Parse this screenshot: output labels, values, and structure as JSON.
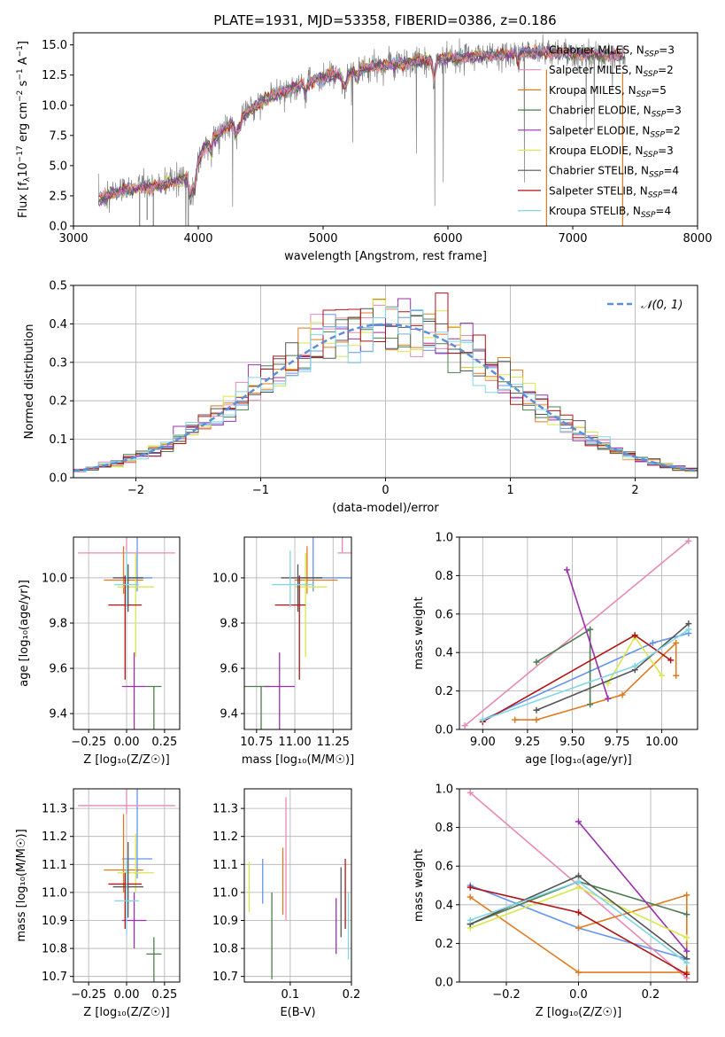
{
  "figure": {
    "title": "PLATE=1931, MJD=53358, FIBERID=0386, z=0.186"
  },
  "colors": {
    "Chabrier MILES": "#6495ed",
    "Salpeter MILES": "#e88ab5",
    "Kroupa MILES": "#e07b20",
    "Chabrier ELODIE": "#4d7d4d",
    "Salpeter ELODIE": "#9b2fae",
    "Kroupa ELODIE": "#d8e84a",
    "Chabrier STELIB": "#555555",
    "Salpeter STELIB": "#b01515",
    "Kroupa STELIB": "#7fd6e8",
    "data": "#808080",
    "gauss": "#5b8fd8"
  },
  "chart_data": [
    {
      "id": "spectrum",
      "type": "line",
      "xlabel": "wavelength [Angstrom, rest frame]",
      "ylabel": "Flux [f_λ10^{-17} erg cm^{-2} s^{-1} A^{-1}]",
      "xlim": [
        3000,
        8000
      ],
      "ylim": [
        0,
        16
      ],
      "xticks": [
        "3000",
        "4000",
        "5000",
        "6000",
        "7000",
        "8000"
      ],
      "yticks": [
        "0.0",
        "2.5",
        "5.0",
        "7.5",
        "10.0",
        "12.5",
        "15.0"
      ],
      "legend": [
        "Chabrier MILES, N_{SSP}=3",
        "Salpeter MILES, N_{SSP}=2",
        "Kroupa MILES, N_{SSP}=5",
        "Chabrier ELODIE, N_{SSP}=3",
        "Salpeter ELODIE, N_{SSP}=2",
        "Kroupa ELODIE, N_{SSP}=3",
        "Chabrier STELIB, N_{SSP}=4",
        "Salpeter STELIB, N_{SSP}=4",
        "Kroupa STELIB, N_{SSP}=4"
      ],
      "legend_position": "top-right",
      "continuum_x": [
        3200,
        3400,
        3600,
        3800,
        3950,
        4050,
        4200,
        4400,
        4600,
        4800,
        5000,
        5200,
        5400,
        5600,
        5800,
        6000,
        6200,
        6400,
        6600,
        6800,
        7000,
        7200,
        7400
      ],
      "continuum_y": [
        2.2,
        3.0,
        3.2,
        3.6,
        4.3,
        6.5,
        8.0,
        9.5,
        10.8,
        11.6,
        12.3,
        12.8,
        13.2,
        13.4,
        13.7,
        13.9,
        14.0,
        14.2,
        14.3,
        14.4,
        14.3,
        14.2,
        14.1
      ]
    },
    {
      "id": "residuals",
      "type": "bar",
      "xlabel": "(data-model)/error",
      "ylabel": "Normed distribution",
      "xlim": [
        -2.5,
        2.5
      ],
      "ylim": [
        0,
        0.5
      ],
      "xticks": [
        "−2",
        "−1",
        "0",
        "1",
        "2"
      ],
      "yticks": [
        "0.0",
        "0.1",
        "0.2",
        "0.3",
        "0.4",
        "0.5"
      ],
      "legend": [
        "𝒩(0, 1)"
      ],
      "legend_position": "top-right",
      "bin_width": 0.1,
      "grid": true
    },
    {
      "id": "age_vs_Z",
      "type": "scatter",
      "xlabel": "Z [log₁₀(Z/Z☉)]",
      "ylabel": "age  [log₁₀(age/yr)]",
      "xlim": [
        -0.35,
        0.35
      ],
      "ylim": [
        9.33,
        10.18
      ],
      "xticks": [
        "−0.25",
        "0.00",
        "0.25"
      ],
      "yticks": [
        "9.4",
        "9.6",
        "9.8",
        "10.0"
      ],
      "grid": true
    },
    {
      "id": "age_vs_mass",
      "type": "scatter",
      "xlabel": "mass [log₁₀(M/M☉)]",
      "xlim": [
        10.67,
        11.37
      ],
      "ylim": [
        9.33,
        10.18
      ],
      "xticks": [
        "10.75",
        "11.00",
        "11.25"
      ],
      "yticks": [
        "9.4",
        "9.6",
        "9.8",
        "10.0"
      ],
      "grid": true
    },
    {
      "id": "weight_vs_age",
      "type": "line",
      "xlabel": "age  [log₁₀(age/yr)]",
      "ylabel": "mass weight",
      "xlim": [
        8.87,
        10.2
      ],
      "ylim": [
        0,
        1
      ],
      "xticks": [
        "9.00",
        "9.25",
        "9.50",
        "9.75",
        "10.00"
      ],
      "yticks": [
        "0.0",
        "0.2",
        "0.4",
        "0.6",
        "0.8",
        "1.0"
      ],
      "grid": true
    },
    {
      "id": "mass_vs_Z",
      "type": "scatter",
      "xlabel": "Z [log₁₀(Z/Z☉)]",
      "ylabel": "mass [log₁₀(M/M☉)]",
      "xlim": [
        -0.35,
        0.35
      ],
      "ylim": [
        10.68,
        11.37
      ],
      "xticks": [
        "−0.25",
        "0.00",
        "0.25"
      ],
      "yticks": [
        "10.7",
        "10.8",
        "10.9",
        "11.0",
        "11.1",
        "11.2",
        "11.3"
      ],
      "grid": true
    },
    {
      "id": "mass_vs_ebv",
      "type": "scatter",
      "xlabel": "E(B-V)",
      "xlim": [
        0.025,
        0.2
      ],
      "ylim": [
        10.68,
        11.37
      ],
      "xticks": [
        "0.1",
        "0.2"
      ],
      "yticks": [
        "10.7",
        "10.8",
        "10.9",
        "11.0",
        "11.1",
        "11.2",
        "11.3"
      ],
      "grid": true
    },
    {
      "id": "weight_vs_Z",
      "type": "line",
      "xlabel": "Z [log₁₀(Z/Z☉)]",
      "ylabel": "mass weight",
      "xlim": [
        -0.33,
        0.33
      ],
      "ylim": [
        0,
        1
      ],
      "xticks": [
        "−0.2",
        "0.0",
        "0.2"
      ],
      "yticks": [
        "0.0",
        "0.2",
        "0.4",
        "0.6",
        "0.8",
        "1.0"
      ],
      "grid": true
    }
  ],
  "models": [
    {
      "key": "Chabrier MILES",
      "Z": 0.07,
      "Zerr": 0.1,
      "age": 10.0,
      "ageErr": [
        0.18,
        0.06
      ],
      "mass": 11.12,
      "massErr": [
        0.25,
        0.07
      ],
      "ebv": 0.055,
      "ebvRange": [
        10.96,
        11.12
      ],
      "ssp_age": [
        9.0,
        9.95,
        10.15
      ],
      "ssp_w": [
        0.05,
        0.45,
        0.5
      ],
      "ssp_Z": [
        -0.3,
        0.0,
        0.3
      ],
      "ssp_wz": [
        0.5,
        0.28,
        0.12
      ]
    },
    {
      "key": "Salpeter MILES",
      "Z": 0.0,
      "Zerr": 0.32,
      "age": 10.11,
      "ageErr": [
        0.6,
        0.0
      ],
      "mass": 11.31,
      "massErr": [
        0.43,
        0.03
      ],
      "ebv": 0.093,
      "ebvRange": [
        10.9,
        11.34
      ],
      "ssp_age": [
        8.9,
        10.15
      ],
      "ssp_w": [
        0.02,
        0.98
      ],
      "ssp_Z": [
        -0.3,
        0.3
      ],
      "ssp_wz": [
        0.98,
        0.02
      ]
    },
    {
      "key": "Kroupa MILES",
      "Z": -0.02,
      "Zerr": 0.13,
      "age": 9.99,
      "ageErr": [
        0.15,
        0.06
      ],
      "mass": 11.08,
      "massErr": [
        0.2,
        0.08
      ],
      "ebv": 0.088,
      "ebvRange": [
        10.92,
        11.16
      ],
      "ssp_age": [
        9.18,
        9.3,
        9.78,
        10.08,
        10.08
      ],
      "ssp_w": [
        0.05,
        0.05,
        0.18,
        0.45,
        0.28
      ],
      "ssp_Z": [
        -0.3,
        0.0,
        0.3,
        0.3,
        0.0
      ],
      "ssp_wz": [
        0.44,
        0.05,
        0.05,
        0.45,
        0.28
      ]
    },
    {
      "key": "Chabrier ELODIE",
      "Z": 0.18,
      "Zerr": 0.05,
      "age": 9.52,
      "ageErr": [
        0.0,
        0.33
      ],
      "mass": 10.78,
      "massErr": [
        0.06,
        0.25
      ],
      "ebv": 0.07,
      "ebvRange": [
        10.69,
        11.0
      ],
      "ssp_age": [
        9.3,
        9.6,
        9.6
      ],
      "ssp_w": [
        0.35,
        0.52,
        0.13
      ],
      "ssp_Z": [
        -0.3,
        0.0,
        0.3
      ],
      "ssp_wz": [
        0.3,
        0.52,
        0.35
      ]
    },
    {
      "key": "Salpeter ELODIE",
      "Z": 0.05,
      "Zerr": 0.08,
      "age": 9.52,
      "ageErr": [
        0.15,
        0.32
      ],
      "mass": 10.9,
      "massErr": [
        0.1,
        0.1
      ],
      "ebv": 0.175,
      "ebvRange": [
        10.78,
        10.98
      ],
      "ssp_age": [
        9.47,
        9.7
      ],
      "ssp_w": [
        0.83,
        0.16
      ],
      "ssp_Z": [
        0.0,
        0.3
      ],
      "ssp_wz": [
        0.83,
        0.16
      ]
    },
    {
      "key": "Kroupa ELODIE",
      "Z": 0.06,
      "Zerr": 0.12,
      "age": 9.96,
      "ageErr": [
        0.15,
        0.31
      ],
      "mass": 11.07,
      "massErr": [
        0.14,
        0.07
      ],
      "ebv": 0.033,
      "ebvRange": [
        10.93,
        11.11
      ],
      "ssp_age": [
        9.7,
        9.85,
        10.0
      ],
      "ssp_w": [
        0.24,
        0.48,
        0.28
      ],
      "ssp_Z": [
        -0.3,
        0.0,
        0.3
      ],
      "ssp_wz": [
        0.28,
        0.49,
        0.23
      ]
    },
    {
      "key": "Chabrier STELIB",
      "Z": 0.01,
      "Zerr": 0.1,
      "age": 10.0,
      "ageErr": [
        0.06,
        0.15
      ],
      "mass": 11.02,
      "massErr": [
        0.16,
        0.11
      ],
      "ebv": 0.183,
      "ebvRange": [
        10.84,
        11.09
      ],
      "ssp_age": [
        9.3,
        9.85,
        10.15
      ],
      "ssp_w": [
        0.1,
        0.31,
        0.55
      ],
      "ssp_Z": [
        -0.3,
        0.0,
        0.3
      ],
      "ssp_wz": [
        0.3,
        0.55,
        0.12
      ]
    },
    {
      "key": "Salpeter STELIB",
      "Z": -0.01,
      "Zerr": 0.11,
      "age": 9.88,
      "ageErr": [
        0.13,
        0.33
      ],
      "mass": 11.03,
      "massErr": [
        0.04,
        0.16
      ],
      "ebv": 0.19,
      "ebvRange": [
        10.87,
        11.12
      ],
      "ssp_age": [
        9.0,
        9.85,
        10.05
      ],
      "ssp_w": [
        0.04,
        0.49,
        0.36
      ],
      "ssp_Z": [
        -0.3,
        0.0,
        0.3
      ],
      "ssp_wz": [
        0.49,
        0.36,
        0.04
      ]
    },
    {
      "key": "Kroupa STELIB",
      "Z": 0.0,
      "Zerr": 0.08,
      "age": 9.97,
      "ageErr": [
        0.15,
        0.1
      ],
      "mass": 10.97,
      "massErr": [
        0.15,
        0.12
      ],
      "ebv": 0.195,
      "ebvRange": [
        10.76,
        11.0
      ],
      "ssp_age": [
        9.0,
        9.85,
        10.15
      ],
      "ssp_w": [
        0.05,
        0.33,
        0.52
      ],
      "ssp_Z": [
        -0.3,
        0.0,
        0.3
      ],
      "ssp_wz": [
        0.32,
        0.52,
        0.1
      ]
    }
  ]
}
